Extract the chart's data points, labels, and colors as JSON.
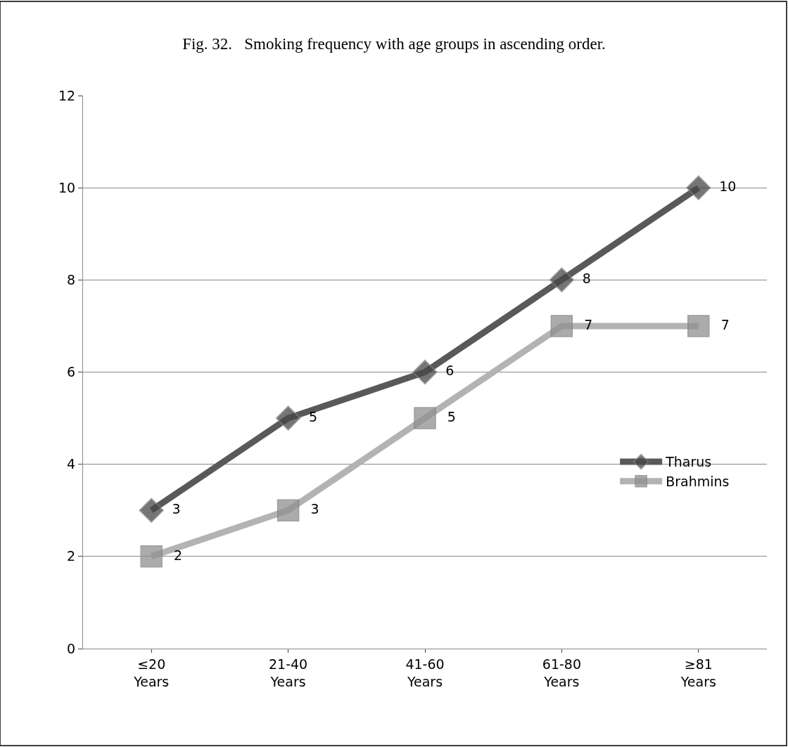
{
  "chart_data": {
    "type": "line",
    "title": "Fig. 32.   Smoking frequency with age groups in ascending order.",
    "categories": [
      "≤20\nYears",
      "21-40\nYears",
      "41-60\nYears",
      "61-80\nYears",
      "≥81\nYears"
    ],
    "series": [
      {
        "name": "Tharus",
        "color": "#595959",
        "marker": "diamond",
        "values": [
          3,
          5,
          6,
          8,
          10
        ]
      },
      {
        "name": "Brahmins",
        "color": "#b3b3b3",
        "marker": "square",
        "values": [
          2,
          3,
          5,
          7,
          7
        ]
      }
    ],
    "ylim": [
      0,
      12
    ],
    "yticks": [
      0,
      2,
      4,
      6,
      8,
      10,
      12
    ],
    "grid": "y",
    "legend": "right",
    "data_labels": true,
    "line_style": "solid"
  }
}
